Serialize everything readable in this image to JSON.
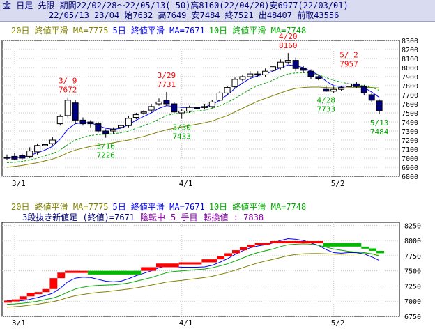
{
  "header": {
    "line1": "金 日足 先限 期間22/02/28～22/05/13( 50)高8160(22/04/20)安6977(22/03/01)",
    "line2": "22/05/13 23/04 始7632 高7649 安7484 終7521 出48407 前取43556"
  },
  "colors": {
    "ma20": "#808000",
    "ma5": "#0000ff",
    "ma10": "#00aa00",
    "annot_high": "#ff0000",
    "annot_low": "#00aa00",
    "candle_down": "#000080",
    "candle_up": "#ffffff",
    "break_up": "#ff0000",
    "break_down": "#00bb00",
    "break_info": "#8800aa"
  },
  "legend_top": [
    {
      "text": "20日 終値平滑 MA=7775",
      "color": "#808000"
    },
    {
      "text": "5日 終値平滑 MA=7671",
      "color": "#0000ff"
    },
    {
      "text": "10日 終値平滑 MA=7748",
      "color": "#00aa00"
    }
  ],
  "legend_bottom": [
    {
      "text": "20日 終値平滑 MA=7775",
      "color": "#808000"
    },
    {
      "text": "5日 終値平滑 MA=7671",
      "color": "#0000ff"
    },
    {
      "text": "10日 終値平滑 MA=7748",
      "color": "#00aa00"
    }
  ],
  "break_info": [
    {
      "text": "3段抜き新値足 (終値)=7671",
      "color": "#000080"
    },
    {
      "text": "陰転中",
      "color": "#8800aa"
    },
    {
      "text": "5 手目",
      "color": "#8800aa"
    },
    {
      "text": "転換値 : 7838",
      "color": "#8800aa"
    }
  ],
  "chart_data": [
    {
      "type": "candlestick",
      "ylim": [
        6800,
        8300
      ],
      "yticks": [
        6800,
        6900,
        7000,
        7100,
        7200,
        7300,
        7400,
        7500,
        7600,
        7700,
        7800,
        7900,
        8000,
        8100,
        8200,
        8300
      ],
      "xticks": [
        {
          "label": "3/1",
          "index": 1
        },
        {
          "label": "4/1",
          "index": 23
        },
        {
          "label": "5/2",
          "index": 43
        }
      ],
      "candles": [
        [
          7010,
          7000,
          7040,
          6977
        ],
        [
          7020,
          6990,
          7060,
          6980
        ],
        [
          7030,
          7000,
          7050,
          6985
        ],
        [
          7020,
          7080,
          7120,
          7000
        ],
        [
          7070,
          7140,
          7160,
          7040
        ],
        [
          7140,
          7150,
          7180,
          7120
        ],
        [
          7160,
          7200,
          7230,
          7140
        ],
        [
          7380,
          7460,
          7480,
          7360
        ],
        [
          7470,
          7640,
          7672,
          7450
        ],
        [
          7610,
          7420,
          7640,
          7380
        ],
        [
          7420,
          7380,
          7450,
          7360
        ],
        [
          7400,
          7380,
          7420,
          7340
        ],
        [
          7380,
          7300,
          7400,
          7280
        ],
        [
          7300,
          7270,
          7320,
          7226
        ],
        [
          7300,
          7320,
          7340,
          7270
        ],
        [
          7340,
          7360,
          7390,
          7320
        ],
        [
          7360,
          7440,
          7470,
          7340
        ],
        [
          7450,
          7480,
          7500,
          7430
        ],
        [
          7500,
          7510,
          7530,
          7480
        ],
        [
          7530,
          7570,
          7600,
          7500
        ],
        [
          7600,
          7620,
          7660,
          7580
        ],
        [
          7640,
          7600,
          7731,
          7580
        ],
        [
          7600,
          7510,
          7620,
          7490
        ],
        [
          7500,
          7520,
          7540,
          7433
        ],
        [
          7520,
          7560,
          7580,
          7500
        ],
        [
          7560,
          7550,
          7580,
          7530
        ],
        [
          7560,
          7570,
          7600,
          7540
        ],
        [
          7570,
          7620,
          7640,
          7550
        ],
        [
          7640,
          7720,
          7740,
          7620
        ],
        [
          7720,
          7780,
          7800,
          7700
        ],
        [
          7790,
          7870,
          7890,
          7770
        ],
        [
          7870,
          7900,
          7920,
          7850
        ],
        [
          7900,
          7930,
          7960,
          7880
        ],
        [
          7930,
          7920,
          7960,
          7900
        ],
        [
          7920,
          7960,
          7990,
          7900
        ],
        [
          7970,
          8010,
          8050,
          7950
        ],
        [
          8000,
          8060,
          8090,
          7980
        ],
        [
          8060,
          8080,
          8160,
          8040
        ],
        [
          8080,
          7990,
          8110,
          7960
        ],
        [
          7990,
          7970,
          8020,
          7940
        ],
        [
          7960,
          7900,
          7980,
          7870
        ],
        [
          7900,
          7880,
          7920,
          7860
        ],
        [
          7760,
          7740,
          7800,
          7733
        ],
        [
          7740,
          7760,
          7790,
          7720
        ],
        [
          7760,
          7780,
          7800,
          7740
        ],
        [
          7790,
          7820,
          7957,
          7720
        ],
        [
          7820,
          7790,
          7840,
          7770
        ],
        [
          7790,
          7720,
          7810,
          7700
        ],
        [
          7700,
          7640,
          7720,
          7620
        ],
        [
          7632,
          7521,
          7649,
          7484
        ]
      ],
      "series": [
        {
          "name": "20日 終値平滑",
          "values": [
            6900,
            6910,
            6920,
            6935,
            6950,
            6970,
            6990,
            7020,
            7060,
            7090,
            7110,
            7130,
            7145,
            7155,
            7170,
            7185,
            7200,
            7220,
            7240,
            7265,
            7290,
            7315,
            7330,
            7345,
            7360,
            7375,
            7390,
            7410,
            7440,
            7470,
            7510,
            7550,
            7590,
            7630,
            7660,
            7690,
            7720,
            7750,
            7770,
            7780,
            7785,
            7785,
            7780,
            7775,
            7775,
            7778,
            7780,
            7782,
            7780,
            7775
          ]
        },
        {
          "name": "5日 終値平滑",
          "values": [
            7010,
            7005,
            7010,
            7030,
            7060,
            7090,
            7130,
            7210,
            7320,
            7380,
            7395,
            7390,
            7360,
            7330,
            7320,
            7330,
            7370,
            7420,
            7460,
            7500,
            7550,
            7580,
            7570,
            7560,
            7560,
            7560,
            7565,
            7590,
            7640,
            7700,
            7770,
            7830,
            7880,
            7910,
            7930,
            7960,
            8000,
            8030,
            8020,
            8000,
            7960,
            7920,
            7850,
            7800,
            7790,
            7800,
            7800,
            7780,
            7730,
            7671
          ]
        },
        {
          "name": "10日 終値平滑",
          "values": [
            6950,
            6955,
            6965,
            6980,
            7000,
            7025,
            7050,
            7090,
            7150,
            7200,
            7230,
            7250,
            7260,
            7265,
            7270,
            7280,
            7300,
            7330,
            7360,
            7390,
            7430,
            7470,
            7490,
            7500,
            7510,
            7520,
            7530,
            7550,
            7580,
            7615,
            7660,
            7710,
            7760,
            7800,
            7830,
            7860,
            7900,
            7930,
            7940,
            7945,
            7940,
            7920,
            7890,
            7860,
            7840,
            7820,
            7810,
            7800,
            7780,
            7748
          ]
        }
      ],
      "annotations": [
        {
          "date": "3/ 9",
          "value": "7672",
          "kind": "high",
          "index": 8
        },
        {
          "date": "3/16",
          "value": "7226",
          "kind": "low",
          "index": 13
        },
        {
          "date": "3/29",
          "value": "7731",
          "kind": "high",
          "index": 21
        },
        {
          "date": "3/30",
          "value": "7433",
          "kind": "low",
          "index": 23
        },
        {
          "date": "4/20",
          "value": "8160",
          "kind": "high",
          "index": 37
        },
        {
          "date": "4/28",
          "value": "7733",
          "kind": "low",
          "index": 42
        },
        {
          "date": "5/ 2",
          "value": "7957",
          "kind": "high",
          "index": 45
        },
        {
          "date": "5/13",
          "value": "7484",
          "kind": "low",
          "index": 49
        }
      ]
    },
    {
      "type": "bar",
      "ylim": [
        6750,
        8300
      ],
      "yticks": [
        6750,
        7000,
        7250,
        7500,
        7750,
        8000,
        8250
      ],
      "xticks": [
        {
          "label": "3/1",
          "index": 1
        },
        {
          "label": "4/1",
          "index": 23
        },
        {
          "label": "5/2",
          "index": 43
        }
      ],
      "bricks": [
        {
          "dir": "up",
          "from": 6990,
          "to": 7010,
          "start": 0,
          "end": 1
        },
        {
          "dir": "up",
          "from": 7010,
          "to": 7030,
          "start": 1,
          "end": 2
        },
        {
          "dir": "up",
          "from": 7030,
          "to": 7080,
          "start": 2,
          "end": 3
        },
        {
          "dir": "up",
          "from": 7080,
          "to": 7140,
          "start": 3,
          "end": 4
        },
        {
          "dir": "up",
          "from": 7140,
          "to": 7150,
          "start": 4,
          "end": 5
        },
        {
          "dir": "up",
          "from": 7150,
          "to": 7200,
          "start": 5,
          "end": 6
        },
        {
          "dir": "up",
          "from": 7200,
          "to": 7380,
          "start": 6,
          "end": 7
        },
        {
          "dir": "up",
          "from": 7380,
          "to": 7470,
          "start": 7,
          "end": 8
        },
        {
          "dir": "up",
          "from": 7470,
          "to": 7500,
          "start": 8,
          "end": 11
        },
        {
          "dir": "down",
          "from": 7500,
          "to": 7440,
          "start": 11,
          "end": 18
        },
        {
          "dir": "up",
          "from": 7500,
          "to": 7560,
          "start": 18,
          "end": 20
        },
        {
          "dir": "up",
          "from": 7560,
          "to": 7620,
          "start": 20,
          "end": 23
        },
        {
          "dir": "up",
          "from": 7620,
          "to": 7640,
          "start": 23,
          "end": 26
        },
        {
          "dir": "up",
          "from": 7640,
          "to": 7690,
          "start": 26,
          "end": 28
        },
        {
          "dir": "up",
          "from": 7690,
          "to": 7740,
          "start": 28,
          "end": 29
        },
        {
          "dir": "up",
          "from": 7740,
          "to": 7790,
          "start": 29,
          "end": 30
        },
        {
          "dir": "up",
          "from": 7790,
          "to": 7840,
          "start": 30,
          "end": 31
        },
        {
          "dir": "up",
          "from": 7840,
          "to": 7890,
          "start": 31,
          "end": 32
        },
        {
          "dir": "up",
          "from": 7890,
          "to": 7930,
          "start": 32,
          "end": 33
        },
        {
          "dir": "up",
          "from": 7930,
          "to": 7960,
          "start": 33,
          "end": 35
        },
        {
          "dir": "up",
          "from": 7960,
          "to": 7990,
          "start": 35,
          "end": 42
        },
        {
          "dir": "down",
          "from": 7960,
          "to": 7900,
          "start": 42,
          "end": 47
        },
        {
          "dir": "down",
          "from": 7900,
          "to": 7870,
          "start": 47,
          "end": 48
        },
        {
          "dir": "down",
          "from": 7870,
          "to": 7830,
          "start": 48,
          "end": 49
        },
        {
          "dir": "down",
          "from": 7830,
          "to": 7790,
          "start": 49,
          "end": 50
        }
      ]
    }
  ]
}
